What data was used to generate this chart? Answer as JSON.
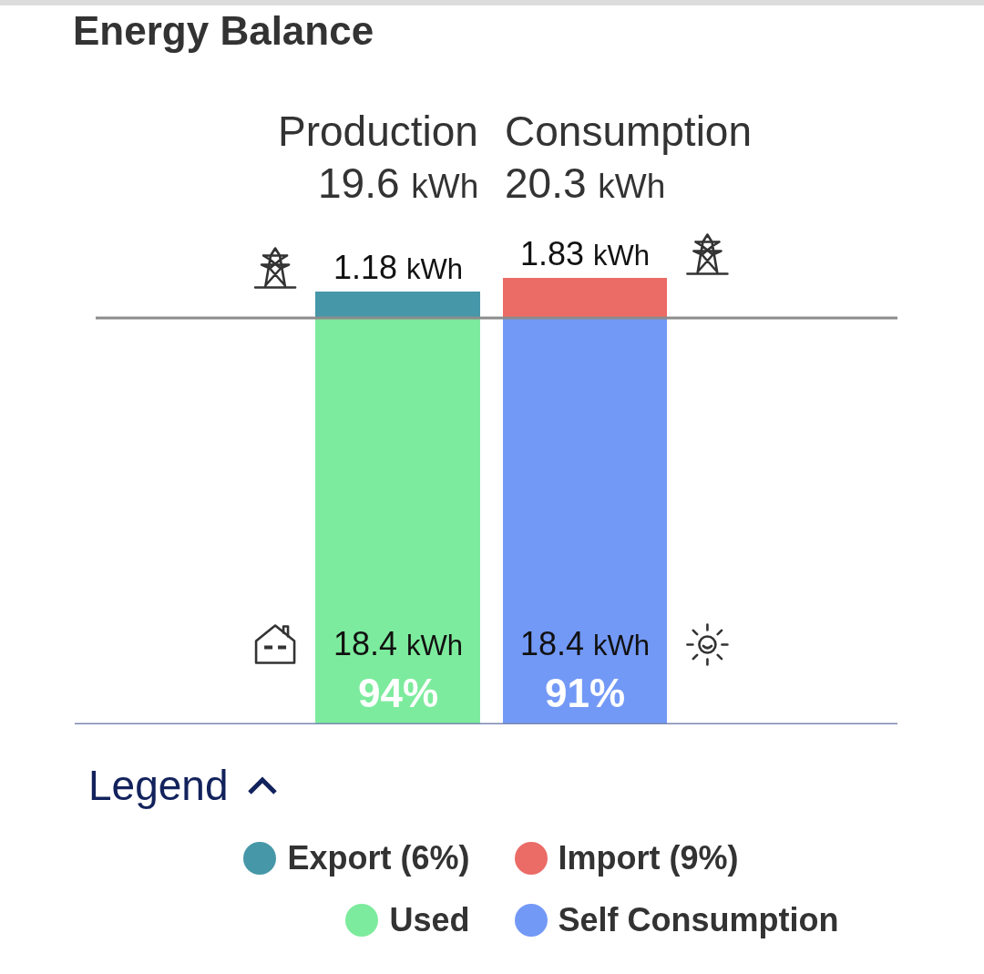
{
  "chart_data": {
    "type": "bar",
    "title": "Energy Balance",
    "legend_title": "Legend",
    "legend": "bottom",
    "tick_labels": "x",
    "stacked": true,
    "categories": [
      "Production",
      "Consumption"
    ],
    "series": [
      {
        "name": "Used",
        "color": "#7deb9d",
        "values": [
          18.4,
          null
        ],
        "value_labels": [
          "18.4 kWh",
          null
        ]
      },
      {
        "name": "Self Consumption",
        "color": "#7399f7",
        "values": [
          null,
          18.4
        ],
        "value_labels": [
          null,
          "18.4 kWh"
        ]
      },
      {
        "name": "Export (6%)",
        "color": "#4697a8",
        "values": [
          1.18,
          null
        ],
        "value_labels": [
          "1.18 kWh",
          null
        ]
      },
      {
        "name": "Import (9%)",
        "color": "#eb6b66",
        "values": [
          null,
          1.83
        ],
        "value_labels": [
          null,
          "1.83 kWh"
        ]
      }
    ],
    "totals": [
      "19.6 kWh",
      "20.3 kWh"
    ],
    "annotations": [
      "94%",
      "91%"
    ],
    "ref_lines": [
      {
        "axis": "y",
        "value": 18.4,
        "color": "#8c8c8c"
      }
    ]
  }
}
